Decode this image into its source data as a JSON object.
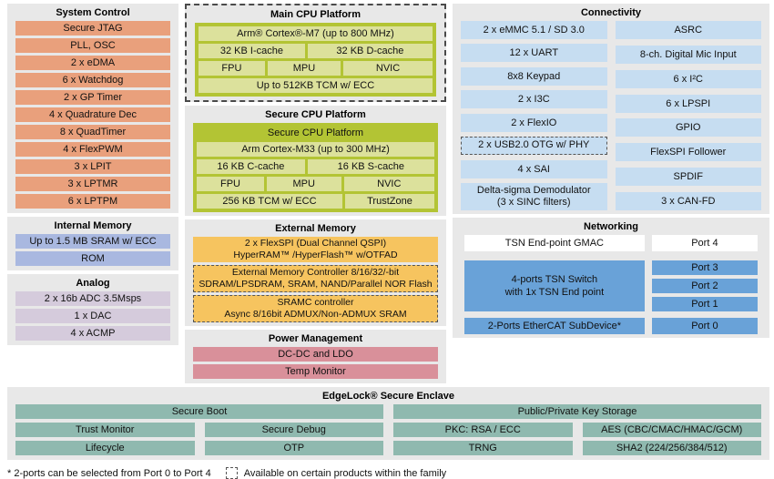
{
  "colors": {
    "panel_gray": "#e8e8e8",
    "system_control": "#e9a07c",
    "internal_memory": "#a9b8e0",
    "analog": "#d5cbdc",
    "cpu_green": "#b3c434",
    "cpu_green_light": "#dce19c",
    "external_memory_orange": "#f6c45f",
    "power_pink": "#d9909a",
    "connectivity_blue": "#c6ddf1",
    "networking_blue": "#69a2d8",
    "edgelock_teal": "#8fb9af"
  },
  "system_control": {
    "title": "System Control",
    "rows": [
      "Secure JTAG",
      "PLL, OSC",
      "2 x eDMA",
      "6 x Watchdog",
      "2 x GP Timer",
      "4 x Quadrature Dec",
      "8 x QuadTimer",
      "4 x FlexPWM",
      "3 x LPIT",
      "3 x LPTMR",
      "6 x LPTPM"
    ]
  },
  "internal_memory": {
    "title": "Internal Memory",
    "rows": [
      "Up to 1.5 MB SRAM w/ ECC",
      "ROM"
    ]
  },
  "analog": {
    "title": "Analog",
    "rows": [
      "2 x 16b ADC 3.5Msps",
      "1 x DAC",
      "4 x ACMP"
    ]
  },
  "main_cpu": {
    "title": "Main CPU Platform",
    "core": "Arm® Cortex®-M7 (up to 800 MHz)",
    "cache1": "32 KB I-cache",
    "cache2": "32 KB D-cache",
    "unit1": "FPU",
    "unit2": "MPU",
    "unit3": "NVIC",
    "tcm": "Up to 512KB TCM w/ ECC"
  },
  "secure_cpu": {
    "title": "Secure CPU Platform",
    "inner_title": "Secure CPU Platform",
    "core": "Arm Cortex-M33 (up to 300 MHz)",
    "cache1": "16 KB C-cache",
    "cache2": "16 KB S-cache",
    "unit1": "FPU",
    "unit2": "MPU",
    "unit3": "NVIC",
    "tcm": "256 KB TCM w/ ECC",
    "trustzone": "TrustZone"
  },
  "external_memory": {
    "title": "External Memory",
    "flexspi": {
      "line1": "2 x FlexSPI (Dual Channel QSPI)",
      "line2": "HyperRAM™ /HyperFlash™ w/OTFAD"
    },
    "emc": {
      "line1": "External Memory Controller 8/16/32/-bit",
      "line2": "SDRAM/LPSDRAM, SRAM, NAND/Parallel NOR Flash"
    },
    "sramc": {
      "line1": "SRAMC controller",
      "line2": "Async 8/16bit ADMUX/Non-ADMUX SRAM"
    }
  },
  "power": {
    "title": "Power Management",
    "rows": [
      "DC-DC and LDO",
      "Temp Monitor"
    ]
  },
  "connectivity": {
    "title": "Connectivity",
    "left_rows": [
      "2 x eMMC 5.1 / SD 3.0",
      "12 x UART",
      "8x8 Keypad",
      "2 x I3C",
      "2 x FlexIO",
      "2 x USB2.0 OTG w/ PHY",
      "4 x SAI"
    ],
    "delta_sigma": {
      "line1": "Delta-sigma Demodulator",
      "line2": "(3 x SINC filters)"
    },
    "right_rows": [
      "ASRC",
      "8-ch. Digital Mic Input",
      "6 x I²C",
      "6 x LPSPI",
      "GPIO",
      "FlexSPI Follower",
      "SPDIF",
      "3 x CAN-FD"
    ]
  },
  "networking": {
    "title": "Networking",
    "gmac": "TSN End-point GMAC",
    "switch": {
      "line1": "4-ports TSN Switch",
      "line2": "with 1x TSN End point"
    },
    "ethercat": "2-Ports EtherCAT SubDevice*",
    "ports": [
      "Port 4",
      "Port 3",
      "Port 2",
      "Port 1",
      "Port 0"
    ]
  },
  "edgelock": {
    "title": "EdgeLock® Secure Enclave",
    "secure_boot": "Secure Boot",
    "key_storage": "Public/Private Key Storage",
    "trust_monitor": "Trust Monitor",
    "secure_debug": "Secure Debug",
    "pkc": "PKC: RSA / ECC",
    "aes": "AES (CBC/CMAC/HMAC/GCM)",
    "lifecycle": "Lifecycle",
    "otp": "OTP",
    "trng": "TRNG",
    "sha2": "SHA2 (224/256/384/512)"
  },
  "footer": {
    "note": "* 2-ports can be selected from Port 0 to Port 4",
    "legend": "Available on certain products within the family"
  }
}
